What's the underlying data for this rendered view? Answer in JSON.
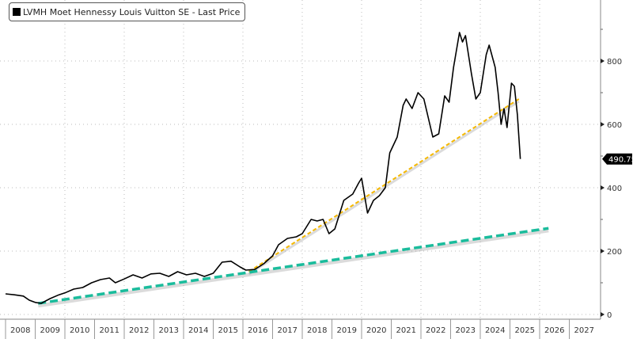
{
  "chart_data": {
    "type": "line",
    "title": "",
    "legend": {
      "position": "top-left",
      "entries": [
        "LVMH Moet Hennessy Louis Vuitton SE - Last Price"
      ]
    },
    "last_value_label": "490.75",
    "xlim": [
      2008,
      2028
    ],
    "ylim": [
      0,
      1000
    ],
    "x_ticks": [
      "2008",
      "2009",
      "2010",
      "2011",
      "2012",
      "2013",
      "2014",
      "2015",
      "2016",
      "2017",
      "2018",
      "2019",
      "2020",
      "2021",
      "2022",
      "2023",
      "2024",
      "2025",
      "2026",
      "2027"
    ],
    "y_ticks": [
      "0",
      "200",
      "400",
      "600",
      "800"
    ],
    "grid": true,
    "y_axis_side": "right",
    "colors": {
      "price": "#000000",
      "trend_short": "#f5b800",
      "trend_long": "#1abc9c"
    },
    "series": [
      {
        "name": "LVMH Moet Hennessy Louis Vuitton SE - Last Price",
        "x": [
          2008.0,
          2008.3,
          2008.6,
          2008.8,
          2009.0,
          2009.2,
          2009.5,
          2009.8,
          2010.0,
          2010.3,
          2010.6,
          2010.9,
          2011.2,
          2011.5,
          2011.7,
          2012.0,
          2012.3,
          2012.6,
          2012.9,
          2013.2,
          2013.5,
          2013.8,
          2014.1,
          2014.4,
          2014.7,
          2015.0,
          2015.3,
          2015.6,
          2015.9,
          2016.1,
          2016.4,
          2016.7,
          2017.0,
          2017.2,
          2017.5,
          2017.8,
          2018.0,
          2018.3,
          2018.5,
          2018.7,
          2018.9,
          2019.1,
          2019.4,
          2019.7,
          2019.9,
          2020.0,
          2020.2,
          2020.4,
          2020.6,
          2020.8,
          2020.95,
          2021.2,
          2021.4,
          2021.5,
          2021.7,
          2021.9,
          2022.1,
          2022.4,
          2022.6,
          2022.8,
          2022.95,
          2023.1,
          2023.3,
          2023.4,
          2023.5,
          2023.7,
          2023.85,
          2024.0,
          2024.2,
          2024.3,
          2024.5,
          2024.6,
          2024.7,
          2024.8,
          2024.9,
          2025.05,
          2025.15,
          2025.25,
          2025.35
        ],
        "y": [
          65,
          62,
          58,
          45,
          38,
          35,
          50,
          62,
          68,
          80,
          85,
          100,
          110,
          115,
          100,
          112,
          125,
          115,
          128,
          130,
          120,
          135,
          125,
          130,
          120,
          130,
          165,
          168,
          150,
          140,
          142,
          160,
          185,
          220,
          240,
          245,
          255,
          300,
          295,
          300,
          255,
          270,
          360,
          380,
          415,
          430,
          320,
          360,
          375,
          400,
          510,
          560,
          660,
          680,
          650,
          700,
          680,
          560,
          570,
          690,
          670,
          780,
          890,
          860,
          880,
          760,
          680,
          700,
          820,
          850,
          780,
          700,
          600,
          650,
          590,
          730,
          720,
          630,
          490.75
        ]
      }
    ],
    "trendlines": [
      {
        "style": "dashed",
        "color": "#f5b800",
        "x": [
          2016.2,
          2025.3
        ],
        "y": [
          135,
          680
        ]
      },
      {
        "style": "dashed",
        "color": "#1abc9c",
        "x": [
          2009.1,
          2026.3
        ],
        "y": [
          35,
          272
        ]
      }
    ]
  }
}
